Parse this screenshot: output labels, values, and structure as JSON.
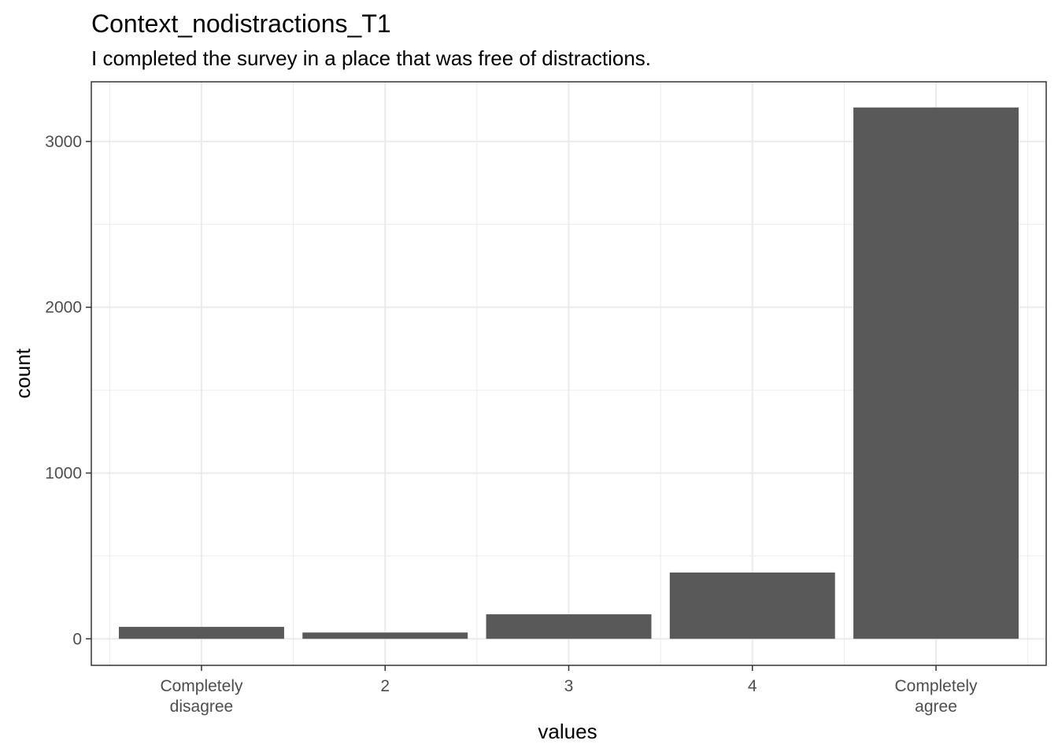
{
  "chart_data": {
    "type": "bar",
    "title": "Context_nodistractions_T1",
    "subtitle": "I completed the survey in a place that was free of distractions.",
    "xlabel": "values",
    "ylabel": "count",
    "categories": [
      [
        "Completely",
        "disagree"
      ],
      [
        "2"
      ],
      [
        "3"
      ],
      [
        "4"
      ],
      [
        "Completely",
        "agree"
      ]
    ],
    "values": [
      72,
      38,
      148,
      400,
      3205
    ],
    "ylim": [
      -160,
      3360
    ],
    "yticks": [
      0,
      1000,
      2000,
      3000
    ],
    "grid": true,
    "legend": "none",
    "colors": {
      "bar": "#595959",
      "grid": "#ebebeb",
      "panel_border": "#333333",
      "tick_text": "#4d4d4d"
    }
  }
}
